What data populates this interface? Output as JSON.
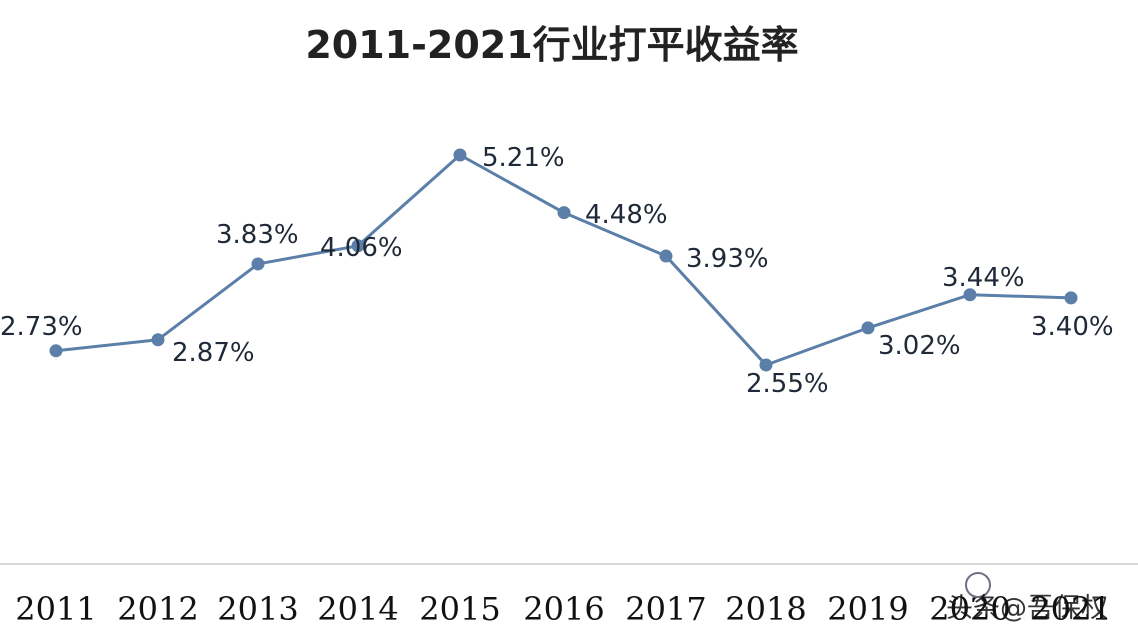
{
  "chart_data": {
    "type": "line",
    "title": "2011-2021行业打平收益率",
    "categories": [
      "2011",
      "2012",
      "2013",
      "2014",
      "2015",
      "2016",
      "2017",
      "2018",
      "2019",
      "2020",
      "2021"
    ],
    "values": [
      2.73,
      2.87,
      3.83,
      4.06,
      5.21,
      4.48,
      3.93,
      2.55,
      3.02,
      3.44,
      3.4
    ],
    "data_labels": [
      "2.73%",
      "2.87%",
      "3.83%",
      "4.06%",
      "5.21%",
      "4.48%",
      "3.93%",
      "2.55%",
      "3.02%",
      "3.44%",
      "3.40%"
    ],
    "line_color": "#5b7fa8",
    "marker_color": "#5b7fa8",
    "axis_color": "#d9d9d9",
    "grid": false
  },
  "watermark": {
    "text": "头条@吾保权"
  }
}
